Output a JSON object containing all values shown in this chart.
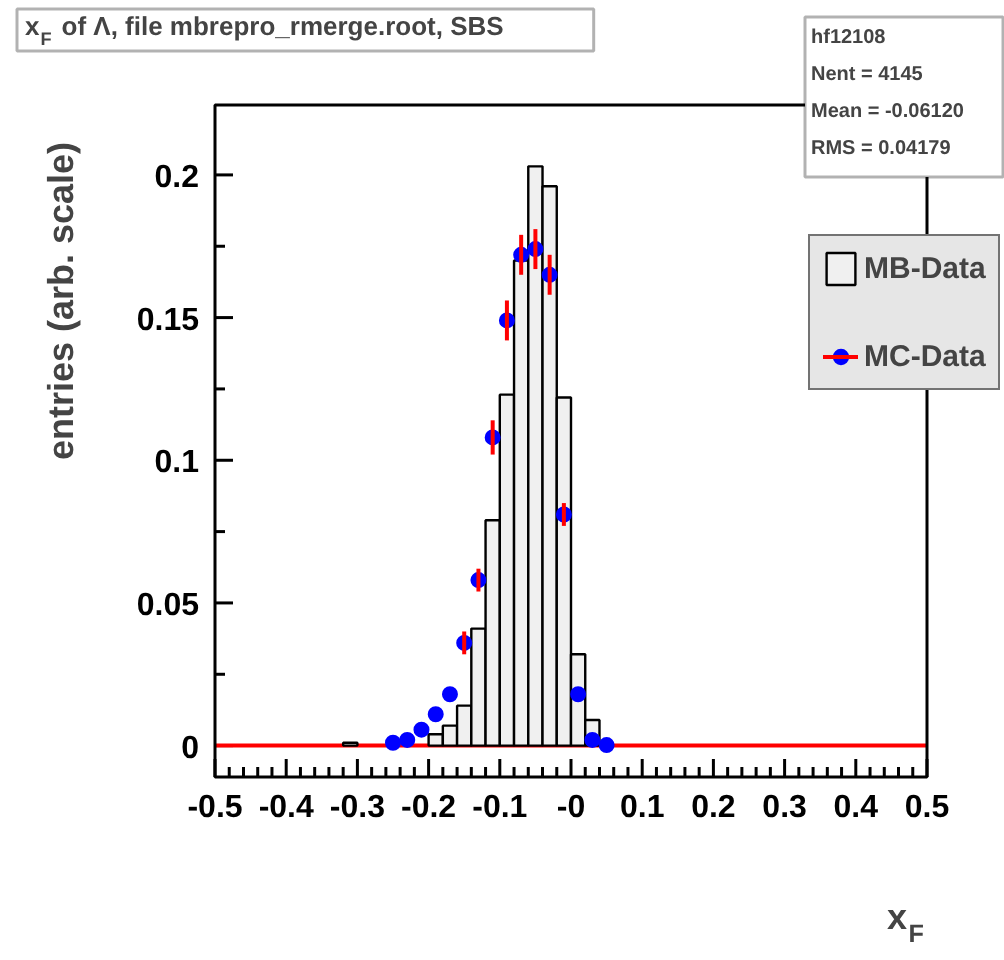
{
  "chart_data": {
    "type": "histogram",
    "title": "x$_{F}$ of Λ, file mbrepro_rmerge.root, SBS",
    "xlabel": "x$_{F}$",
    "ylabel": "entries (arb. scale)",
    "bins": [
      -0.5,
      -0.48,
      -0.46,
      -0.44,
      -0.42,
      -0.4,
      -0.38,
      -0.36,
      -0.34,
      -0.32,
      -0.3,
      -0.28,
      -0.26,
      -0.24,
      -0.22,
      -0.2,
      -0.18,
      -0.16,
      -0.14,
      -0.12,
      -0.1,
      -0.08,
      -0.06,
      -0.04,
      -0.02,
      0,
      0.02,
      0.04,
      0.06,
      0.08,
      0.1,
      0.12,
      0.14,
      0.16,
      0.18,
      0.2,
      0.22,
      0.24,
      0.26,
      0.28,
      0.3,
      0.32,
      0.34,
      0.36,
      0.38,
      0.4,
      0.42,
      0.44,
      0.46,
      0.48,
      0.5
    ],
    "series": [
      {
        "name": "MB-Data",
        "color": "#f0f0f0",
        "values": [
          0,
          0,
          0,
          0,
          0,
          0,
          0,
          0,
          0,
          0.001,
          0,
          0,
          0,
          0,
          0,
          0.004,
          0.007,
          0.014,
          0.041,
          0.079,
          0.123,
          0.17,
          0.203,
          0.196,
          0.122,
          0.032,
          0.009,
          0,
          0,
          0,
          0,
          0,
          0,
          0,
          0,
          0,
          0,
          0,
          0,
          0,
          0,
          0,
          0,
          0,
          0,
          0,
          0,
          0,
          0,
          0
        ]
      },
      {
        "name": "MC-Data",
        "type": "scatter",
        "color": "#0000ff",
        "x": [
          -0.25,
          -0.23,
          -0.21,
          -0.19,
          -0.17,
          -0.15,
          -0.13,
          -0.11,
          -0.09,
          -0.07,
          -0.05,
          -0.03,
          -0.01,
          0.01,
          0.03,
          0.05
        ],
        "values": [
          0.001,
          0.002,
          0.0056,
          0.011,
          0.018,
          0.036,
          0.058,
          0.108,
          0.149,
          0.172,
          0.174,
          0.165,
          0.081,
          0.018,
          0.002,
          0.0002
        ],
        "errors": [
          null,
          null,
          null,
          null,
          null,
          0.004,
          0.004,
          0.006,
          0.007,
          0.007,
          0.007,
          0.007,
          0.004,
          null,
          null,
          null
        ]
      }
    ],
    "ref_lines": [
      {
        "axis": "y",
        "value": 0,
        "color": "#ff0000"
      }
    ],
    "annotations": [
      "hf12108",
      "Nent = 4145",
      "Mean  = -0.06120",
      "RMS   = 0.04179"
    ],
    "xlim": [
      -0.5,
      0.5
    ],
    "ylim": [
      -0.011,
      0.2245
    ],
    "xticks": [
      -0.5,
      -0.4,
      -0.3,
      -0.2,
      -0.1,
      {
        "value": 0,
        "label": "-0"
      },
      0.1,
      0.2,
      0.3,
      0.4,
      0.5
    ],
    "yticks": [
      0,
      0.05,
      0.1,
      0.15,
      0.2
    ],
    "marker": "circle",
    "legend": "top right",
    "grid": false
  }
}
